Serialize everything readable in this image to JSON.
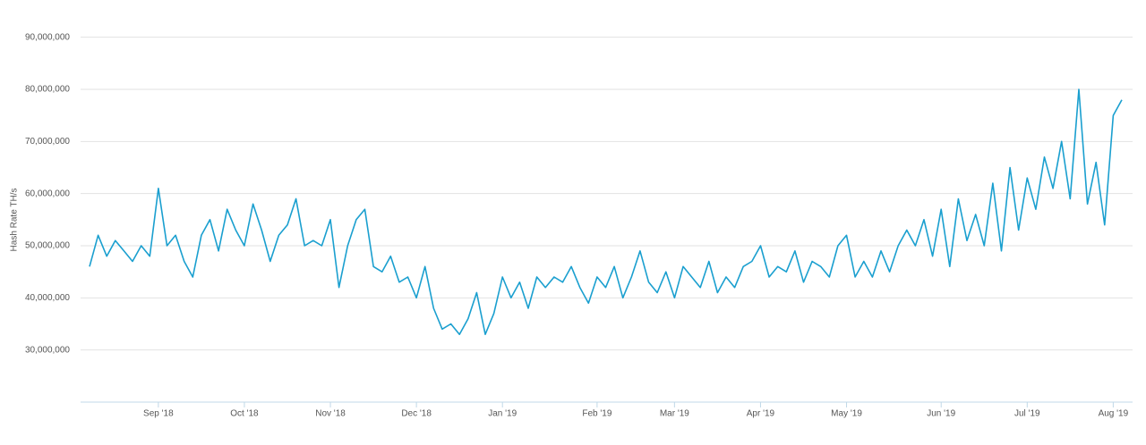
{
  "chart_data": {
    "type": "line",
    "y_axis_label": "Hash Rate TH/s",
    "categories": [
      null,
      null,
      null,
      null,
      null,
      null,
      null,
      null,
      "Sep '18",
      null,
      null,
      null,
      null,
      null,
      null,
      null,
      null,
      null,
      "Oct '18",
      null,
      null,
      null,
      null,
      null,
      null,
      null,
      null,
      null,
      "Nov '18",
      null,
      null,
      null,
      null,
      null,
      null,
      null,
      null,
      null,
      "Dec '18",
      null,
      null,
      null,
      null,
      null,
      null,
      null,
      null,
      null,
      "Jan '19",
      null,
      null,
      null,
      null,
      null,
      null,
      null,
      null,
      null,
      null,
      "Feb '19",
      null,
      null,
      null,
      null,
      null,
      null,
      null,
      null,
      "Mar '19",
      null,
      null,
      null,
      null,
      null,
      null,
      null,
      null,
      null,
      "Apr '19",
      null,
      null,
      null,
      null,
      null,
      null,
      null,
      null,
      null,
      "May '19",
      null,
      null,
      null,
      null,
      null,
      null,
      null,
      null,
      null,
      null,
      "Jun '19",
      null,
      null,
      null,
      null,
      null,
      null,
      null,
      null,
      null,
      "Jul '19",
      null,
      null,
      null,
      null,
      null,
      null,
      null,
      null,
      null,
      "Aug '19",
      null
    ],
    "series": [
      {
        "name": "Hash Rate",
        "color": "#1a9fcf",
        "values": [
          46000000,
          52000000,
          48000000,
          51000000,
          49000000,
          47000000,
          50000000,
          48000000,
          61000000,
          50000000,
          52000000,
          47000000,
          44000000,
          52000000,
          55000000,
          49000000,
          57000000,
          53000000,
          50000000,
          58000000,
          53000000,
          47000000,
          52000000,
          54000000,
          59000000,
          50000000,
          51000000,
          50000000,
          55000000,
          42000000,
          50000000,
          55000000,
          57000000,
          46000000,
          45000000,
          48000000,
          43000000,
          44000000,
          40000000,
          46000000,
          38000000,
          34000000,
          35000000,
          33000000,
          36000000,
          41000000,
          33000000,
          37000000,
          44000000,
          40000000,
          43000000,
          38000000,
          44000000,
          42000000,
          44000000,
          43000000,
          46000000,
          42000000,
          39000000,
          44000000,
          42000000,
          46000000,
          40000000,
          44000000,
          49000000,
          43000000,
          41000000,
          45000000,
          40000000,
          46000000,
          44000000,
          42000000,
          47000000,
          41000000,
          44000000,
          42000000,
          46000000,
          47000000,
          50000000,
          44000000,
          46000000,
          45000000,
          49000000,
          43000000,
          47000000,
          46000000,
          44000000,
          50000000,
          52000000,
          44000000,
          47000000,
          44000000,
          49000000,
          45000000,
          50000000,
          53000000,
          50000000,
          55000000,
          48000000,
          57000000,
          46000000,
          59000000,
          51000000,
          56000000,
          50000000,
          62000000,
          49000000,
          65000000,
          53000000,
          63000000,
          57000000,
          67000000,
          61000000,
          70000000,
          59000000,
          80000000,
          58000000,
          66000000,
          54000000,
          75000000,
          78000000
        ]
      }
    ],
    "ylim": [
      20000000,
      92000000
    ],
    "yticks": [
      {
        "value": 30000000,
        "label": "30,000,000"
      },
      {
        "value": 40000000,
        "label": "40,000,000"
      },
      {
        "value": 50000000,
        "label": "50,000,000"
      },
      {
        "value": 60000000,
        "label": "60,000,000"
      },
      {
        "value": 70000000,
        "label": "70,000,000"
      },
      {
        "value": 80000000,
        "label": "80,000,000"
      },
      {
        "value": 90000000,
        "label": "90,000,000"
      }
    ],
    "grid": true
  }
}
